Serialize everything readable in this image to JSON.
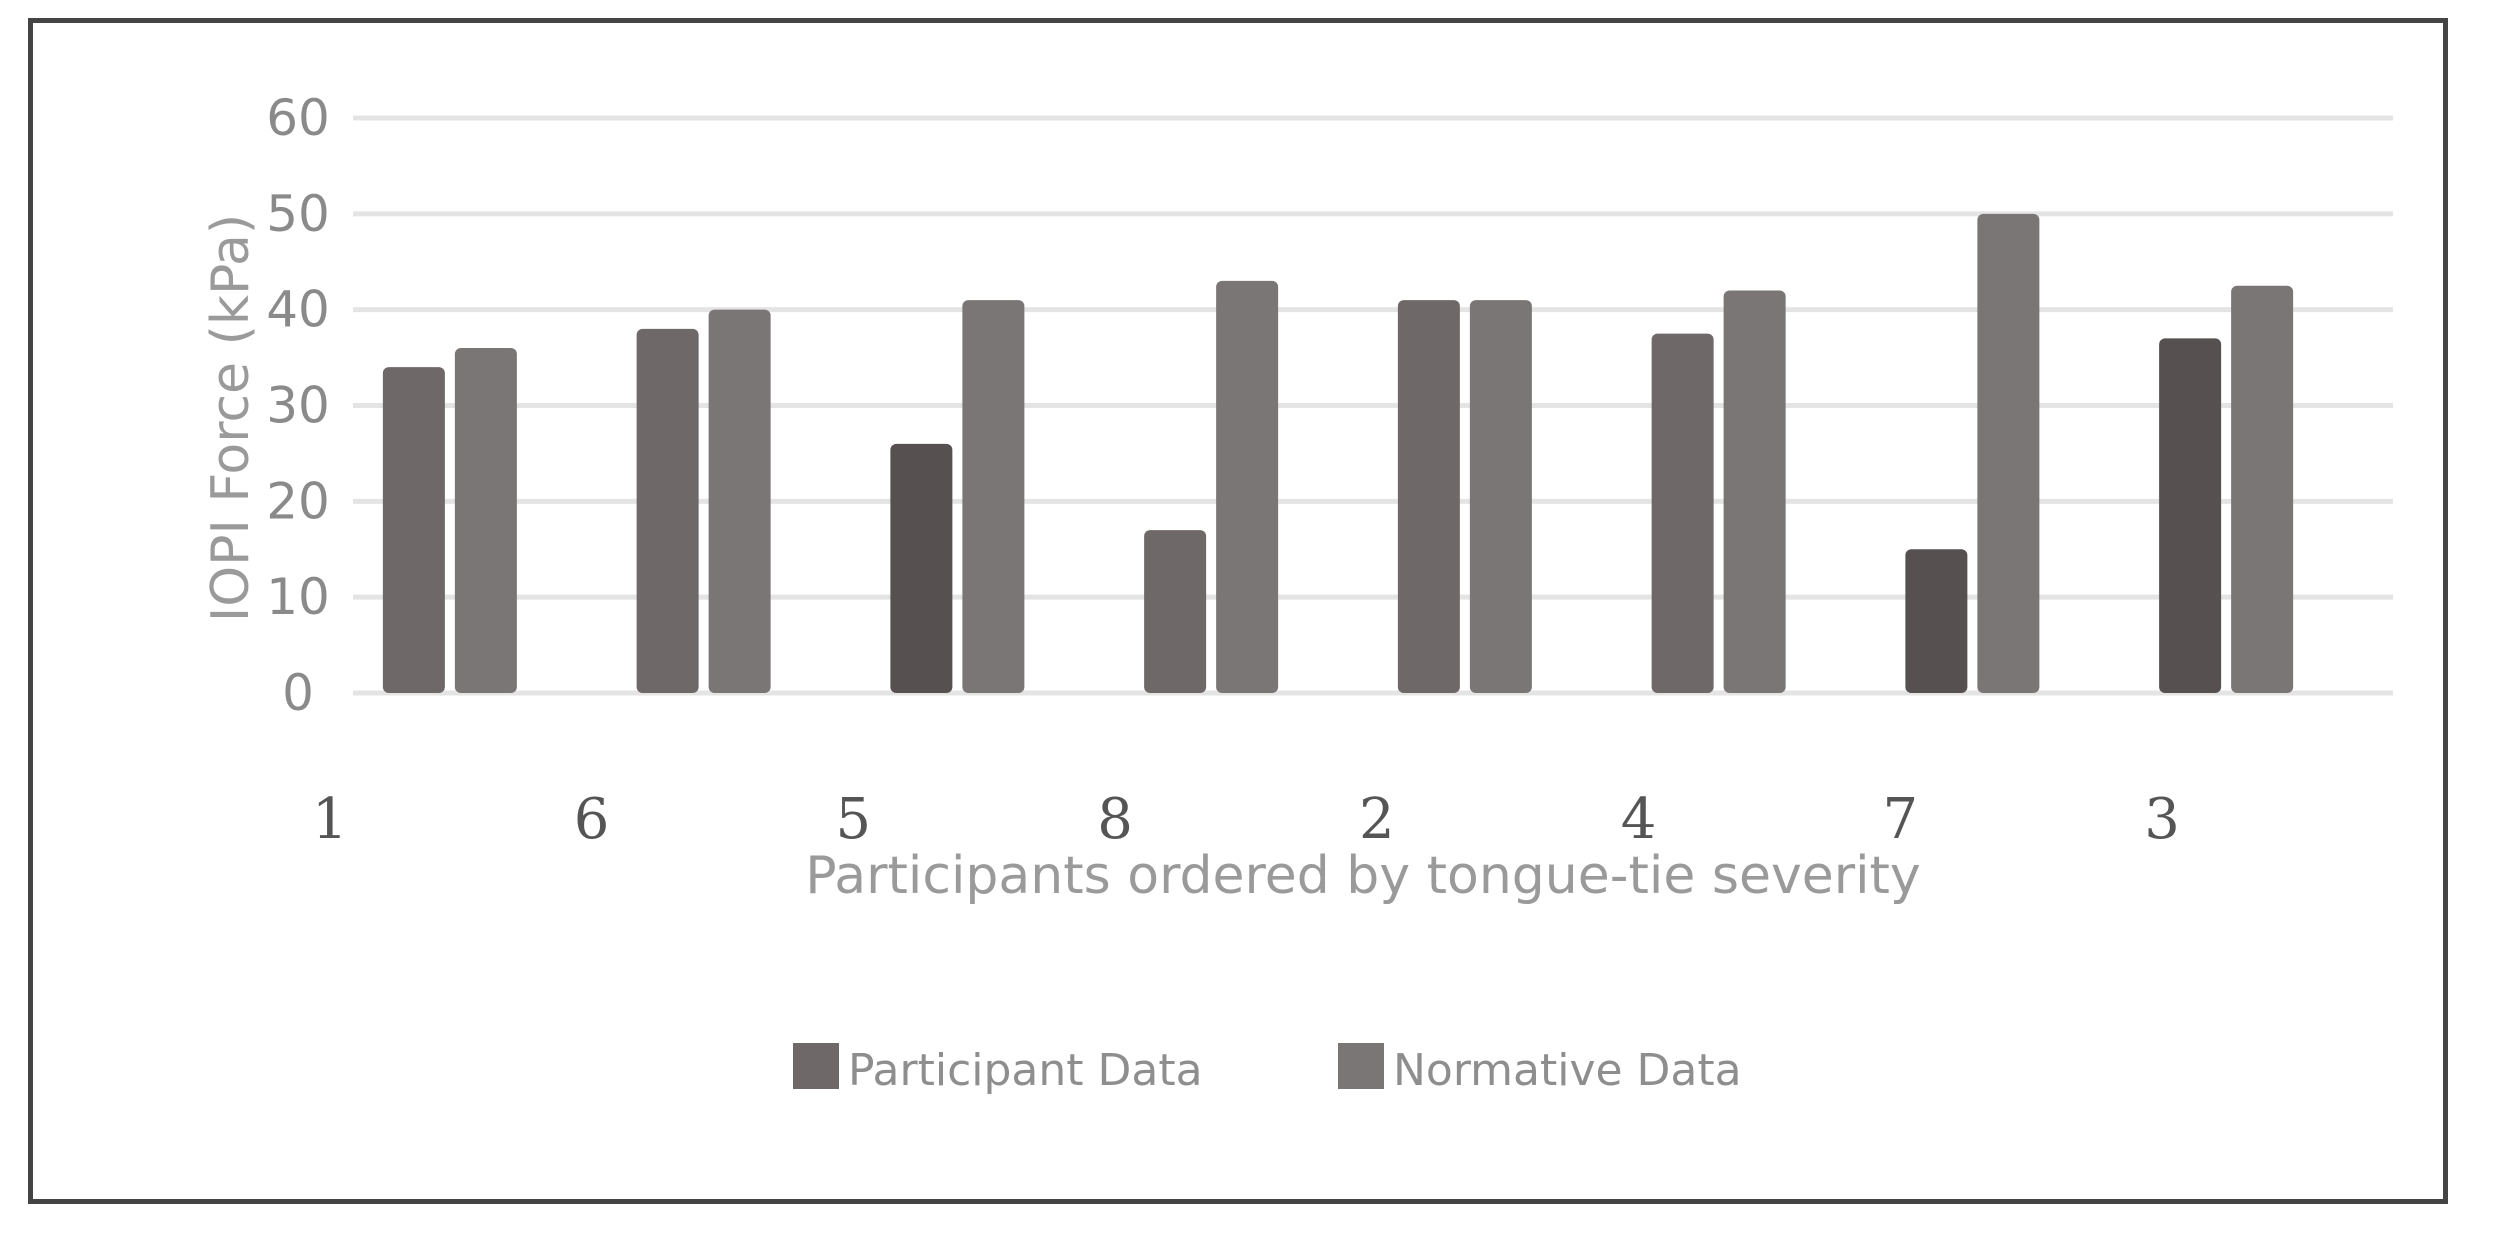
{
  "chart_data": {
    "type": "bar",
    "categories": [
      "1",
      "6",
      "5",
      "8",
      "2",
      "4",
      "7",
      "3"
    ],
    "series": [
      {
        "name": "Participant Data",
        "values": [
          34,
          38,
          26,
          17,
          41,
          37.5,
          15,
          37
        ]
      },
      {
        "name": "Normative Data",
        "values": [
          36,
          40,
          41,
          43,
          41,
          42,
          50,
          42.5
        ]
      }
    ],
    "ylabel": "IOPI Force (kPa)",
    "xlabel": "Participants ordered by tongue-tie severity",
    "ylim": [
      0,
      60
    ],
    "yticks": [
      0,
      10,
      20,
      30,
      40,
      50,
      60
    ],
    "grid": true,
    "legend_position": "bottom",
    "colors": {
      "participant": "#6e6868",
      "participant_dark": "#565050",
      "normative": "#7a7676",
      "grid": "#e4e4e4"
    }
  }
}
